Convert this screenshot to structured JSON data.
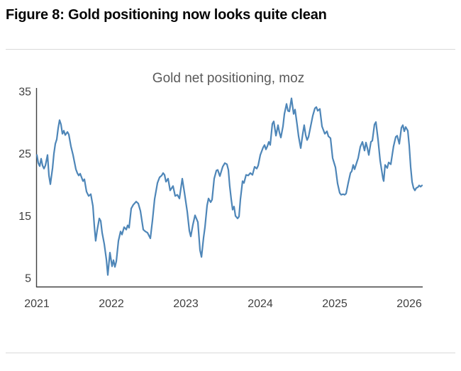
{
  "header": {
    "title": "Figure 8: Gold positioning now looks quite clean"
  },
  "chart_data": {
    "type": "line",
    "title": "Gold net positioning, moz",
    "xlabel": "",
    "ylabel": "",
    "unit": "moz",
    "x_ticks": [
      "2021",
      "2022",
      "2023",
      "2024",
      "2025",
      "2026"
    ],
    "y_ticks": [
      35,
      25,
      15,
      5
    ],
    "xlim": [
      2021.0,
      2026.2
    ],
    "ylim": [
      5,
      35
    ],
    "grid": false,
    "legend_position": "none",
    "colors": {
      "line": "#4e86b8",
      "axis": "#404040",
      "tick_text": "#404040",
      "title_text": "#595959",
      "divider": "#d9d9d9",
      "heading_text": "#050505"
    },
    "series": [
      {
        "name": "Gold net positioning (moz)",
        "points": [
          [
            2021.0,
            24.8
          ],
          [
            2021.019,
            23.5
          ],
          [
            2021.038,
            23.0
          ],
          [
            2021.057,
            24.2
          ],
          [
            2021.076,
            23.1
          ],
          [
            2021.095,
            22.6
          ],
          [
            2021.114,
            23.1
          ],
          [
            2021.143,
            24.8
          ],
          [
            2021.162,
            21.5
          ],
          [
            2021.181,
            20.1
          ],
          [
            2021.21,
            22.7
          ],
          [
            2021.229,
            25.0
          ],
          [
            2021.248,
            26.6
          ],
          [
            2021.267,
            27.3
          ],
          [
            2021.286,
            29.1
          ],
          [
            2021.305,
            30.4
          ],
          [
            2021.324,
            29.7
          ],
          [
            2021.343,
            28.2
          ],
          [
            2021.362,
            28.7
          ],
          [
            2021.381,
            28.0
          ],
          [
            2021.41,
            28.5
          ],
          [
            2021.429,
            28.1
          ],
          [
            2021.457,
            26.2
          ],
          [
            2021.486,
            24.8
          ],
          [
            2021.524,
            22.5
          ],
          [
            2021.543,
            21.9
          ],
          [
            2021.562,
            21.5
          ],
          [
            2021.581,
            21.8
          ],
          [
            2021.6,
            21.2
          ],
          [
            2021.619,
            20.6
          ],
          [
            2021.638,
            20.9
          ],
          [
            2021.667,
            18.9
          ],
          [
            2021.695,
            18.2
          ],
          [
            2021.724,
            18.5
          ],
          [
            2021.752,
            16.6
          ],
          [
            2021.771,
            13.4
          ],
          [
            2021.79,
            11.0
          ],
          [
            2021.81,
            12.7
          ],
          [
            2021.838,
            14.6
          ],
          [
            2021.857,
            14.2
          ],
          [
            2021.876,
            12.3
          ],
          [
            2021.905,
            10.5
          ],
          [
            2021.933,
            8.0
          ],
          [
            2021.952,
            5.5
          ],
          [
            2021.981,
            9.1
          ],
          [
            2022.01,
            6.9
          ],
          [
            2022.029,
            7.9
          ],
          [
            2022.048,
            6.8
          ],
          [
            2022.067,
            7.7
          ],
          [
            2022.095,
            11.0
          ],
          [
            2022.124,
            12.5
          ],
          [
            2022.143,
            12.0
          ],
          [
            2022.171,
            13.2
          ],
          [
            2022.2,
            12.8
          ],
          [
            2022.219,
            13.5
          ],
          [
            2022.238,
            13.1
          ],
          [
            2022.267,
            16.2
          ],
          [
            2022.295,
            16.8
          ],
          [
            2022.333,
            17.3
          ],
          [
            2022.362,
            17.0
          ],
          [
            2022.39,
            15.8
          ],
          [
            2022.429,
            12.8
          ],
          [
            2022.457,
            12.5
          ],
          [
            2022.486,
            12.3
          ],
          [
            2022.524,
            11.4
          ],
          [
            2022.552,
            14.3
          ],
          [
            2022.581,
            17.7
          ],
          [
            2022.619,
            20.3
          ],
          [
            2022.648,
            21.2
          ],
          [
            2022.676,
            21.5
          ],
          [
            2022.695,
            21.9
          ],
          [
            2022.714,
            21.6
          ],
          [
            2022.733,
            20.5
          ],
          [
            2022.762,
            21.0
          ],
          [
            2022.79,
            19.1
          ],
          [
            2022.829,
            19.8
          ],
          [
            2022.857,
            18.2
          ],
          [
            2022.886,
            18.4
          ],
          [
            2022.914,
            17.8
          ],
          [
            2022.952,
            21.0
          ],
          [
            2022.981,
            18.8
          ],
          [
            2023.019,
            15.7
          ],
          [
            2023.048,
            12.6
          ],
          [
            2023.067,
            11.7
          ],
          [
            2023.095,
            13.6
          ],
          [
            2023.124,
            15.1
          ],
          [
            2023.162,
            14.0
          ],
          [
            2023.19,
            9.5
          ],
          [
            2023.21,
            8.4
          ],
          [
            2023.238,
            11.5
          ],
          [
            2023.257,
            13.2
          ],
          [
            2023.286,
            16.7
          ],
          [
            2023.305,
            17.8
          ],
          [
            2023.333,
            17.2
          ],
          [
            2023.352,
            17.6
          ],
          [
            2023.381,
            21.0
          ],
          [
            2023.41,
            22.3
          ],
          [
            2023.429,
            22.4
          ],
          [
            2023.457,
            21.4
          ],
          [
            2023.495,
            22.9
          ],
          [
            2023.524,
            23.5
          ],
          [
            2023.552,
            23.3
          ],
          [
            2023.571,
            22.4
          ],
          [
            2023.59,
            19.8
          ],
          [
            2023.61,
            17.7
          ],
          [
            2023.629,
            16.0
          ],
          [
            2023.648,
            16.5
          ],
          [
            2023.667,
            15.0
          ],
          [
            2023.695,
            14.6
          ],
          [
            2023.714,
            14.9
          ],
          [
            2023.733,
            17.7
          ],
          [
            2023.762,
            20.6
          ],
          [
            2023.781,
            20.3
          ],
          [
            2023.81,
            21.6
          ],
          [
            2023.838,
            21.5
          ],
          [
            2023.867,
            21.9
          ],
          [
            2023.895,
            21.6
          ],
          [
            2023.924,
            22.9
          ],
          [
            2023.952,
            22.6
          ],
          [
            2023.971,
            23.1
          ],
          [
            2024.0,
            24.8
          ],
          [
            2024.038,
            26.0
          ],
          [
            2024.057,
            26.4
          ],
          [
            2024.076,
            25.7
          ],
          [
            2024.095,
            26.2
          ],
          [
            2024.114,
            26.9
          ],
          [
            2024.133,
            26.4
          ],
          [
            2024.162,
            29.8
          ],
          [
            2024.181,
            30.2
          ],
          [
            2024.21,
            27.9
          ],
          [
            2024.238,
            29.6
          ],
          [
            2024.257,
            28.4
          ],
          [
            2024.276,
            27.6
          ],
          [
            2024.305,
            29.4
          ],
          [
            2024.324,
            31.4
          ],
          [
            2024.352,
            33.0
          ],
          [
            2024.371,
            31.9
          ],
          [
            2024.39,
            31.8
          ],
          [
            2024.419,
            33.9
          ],
          [
            2024.448,
            31.4
          ],
          [
            2024.467,
            32.1
          ],
          [
            2024.495,
            29.6
          ],
          [
            2024.514,
            27.8
          ],
          [
            2024.543,
            25.9
          ],
          [
            2024.571,
            28.3
          ],
          [
            2024.59,
            29.6
          ],
          [
            2024.61,
            28.0
          ],
          [
            2024.629,
            27.2
          ],
          [
            2024.648,
            27.7
          ],
          [
            2024.676,
            29.4
          ],
          [
            2024.705,
            31.1
          ],
          [
            2024.733,
            32.3
          ],
          [
            2024.752,
            32.5
          ],
          [
            2024.771,
            31.9
          ],
          [
            2024.8,
            32.2
          ],
          [
            2024.829,
            29.4
          ],
          [
            2024.867,
            28.2
          ],
          [
            2024.895,
            28.6
          ],
          [
            2024.914,
            27.8
          ],
          [
            2024.943,
            27.5
          ],
          [
            2024.971,
            24.3
          ],
          [
            2025.01,
            22.8
          ],
          [
            2025.038,
            20.2
          ],
          [
            2025.067,
            18.7
          ],
          [
            2025.086,
            18.4
          ],
          [
            2025.114,
            18.5
          ],
          [
            2025.133,
            18.4
          ],
          [
            2025.152,
            18.6
          ],
          [
            2025.181,
            20.3
          ],
          [
            2025.21,
            21.9
          ],
          [
            2025.229,
            22.2
          ],
          [
            2025.248,
            23.2
          ],
          [
            2025.267,
            22.5
          ],
          [
            2025.295,
            23.6
          ],
          [
            2025.314,
            24.3
          ],
          [
            2025.343,
            26.1
          ],
          [
            2025.371,
            26.9
          ],
          [
            2025.4,
            25.5
          ],
          [
            2025.419,
            26.8
          ],
          [
            2025.438,
            25.9
          ],
          [
            2025.457,
            24.8
          ],
          [
            2025.486,
            26.9
          ],
          [
            2025.505,
            27.1
          ],
          [
            2025.533,
            29.7
          ],
          [
            2025.552,
            30.1
          ],
          [
            2025.581,
            27.3
          ],
          [
            2025.61,
            23.9
          ],
          [
            2025.648,
            21.0
          ],
          [
            2025.657,
            20.6
          ],
          [
            2025.676,
            23.2
          ],
          [
            2025.705,
            22.7
          ],
          [
            2025.724,
            23.6
          ],
          [
            2025.752,
            23.3
          ],
          [
            2025.771,
            24.8
          ],
          [
            2025.79,
            26.2
          ],
          [
            2025.819,
            27.7
          ],
          [
            2025.838,
            27.9
          ],
          [
            2025.867,
            26.6
          ],
          [
            2025.895,
            29.2
          ],
          [
            2025.914,
            29.6
          ],
          [
            2025.933,
            28.6
          ],
          [
            2025.952,
            29.3
          ],
          [
            2025.981,
            28.7
          ],
          [
            2026.0,
            26.3
          ],
          [
            2026.019,
            22.9
          ],
          [
            2026.038,
            20.5
          ],
          [
            2026.057,
            19.5
          ],
          [
            2026.076,
            19.1
          ],
          [
            2026.095,
            19.5
          ],
          [
            2026.114,
            19.6
          ],
          [
            2026.133,
            19.9
          ],
          [
            2026.152,
            19.7
          ],
          [
            2026.171,
            19.9
          ]
        ]
      }
    ]
  }
}
